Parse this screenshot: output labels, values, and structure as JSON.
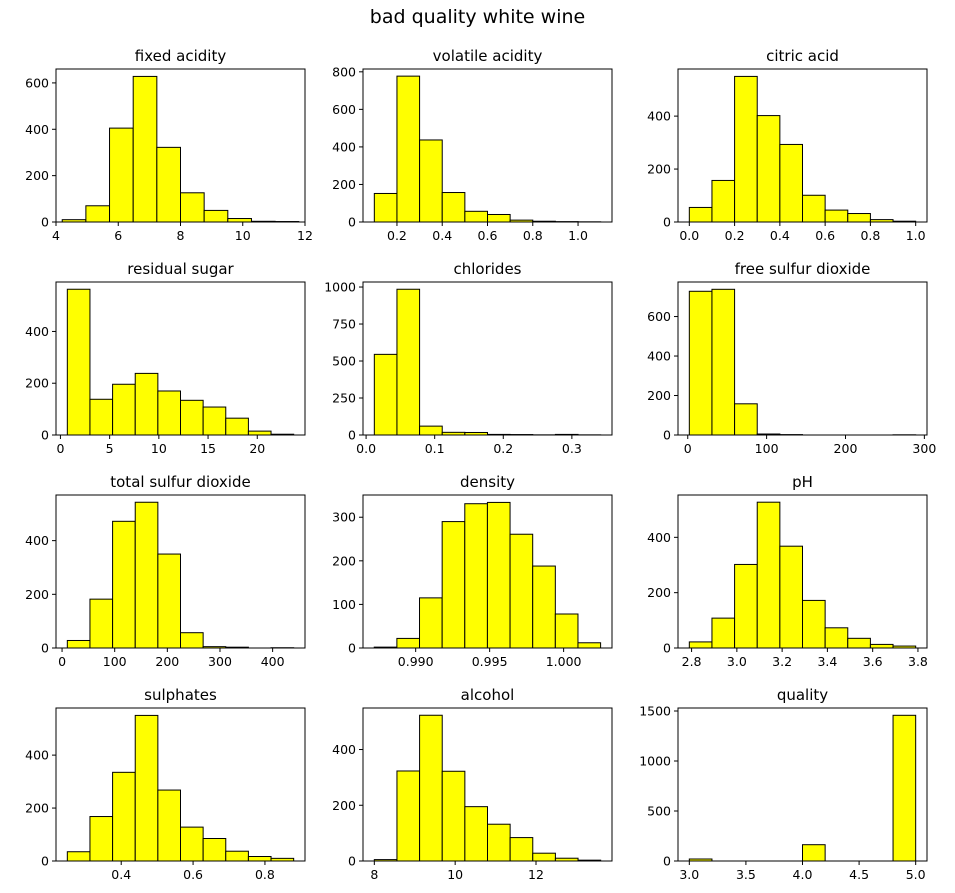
{
  "figure": {
    "title": "bad quality white wine",
    "bar_fill": "#ffff00",
    "bar_edge": "#000000"
  },
  "chart_data": [
    {
      "type": "bar",
      "title": "fixed acidity",
      "bin_edges": [
        4.2,
        4.96,
        5.72,
        6.48,
        7.24,
        8.0,
        8.76,
        9.52,
        10.28,
        11.04,
        11.8
      ],
      "values": [
        10,
        70,
        405,
        628,
        322,
        126,
        50,
        15,
        3,
        2
      ],
      "xlim": [
        4.0,
        12.0
      ],
      "ylim": [
        0,
        660
      ],
      "xticks": [
        4,
        6,
        8,
        10,
        12
      ],
      "yticks": [
        0,
        200,
        400,
        600
      ]
    },
    {
      "type": "bar",
      "title": "volatile acidity",
      "bin_edges": [
        0.1,
        0.2,
        0.3,
        0.4,
        0.5,
        0.6,
        0.7,
        0.8,
        0.9,
        1.0,
        1.1
      ],
      "values": [
        152,
        777,
        437,
        157,
        57,
        40,
        10,
        4,
        2,
        1
      ],
      "xlim": [
        0.05,
        1.15
      ],
      "ylim": [
        0,
        815
      ],
      "xticks": [
        0.2,
        0.4,
        0.6,
        0.8,
        1.0
      ],
      "xtick_labels": [
        "0.2",
        "0.4",
        "0.6",
        "0.8",
        "1.0"
      ],
      "yticks": [
        0,
        200,
        400,
        600,
        800
      ]
    },
    {
      "type": "bar",
      "title": "citric acid",
      "bin_edges": [
        0.0,
        0.1,
        0.2,
        0.3,
        0.4,
        0.5,
        0.6,
        0.7,
        0.8,
        0.9,
        1.0
      ],
      "values": [
        55,
        157,
        550,
        402,
        293,
        101,
        45,
        32,
        9,
        3
      ],
      "xlim": [
        -0.05,
        1.05
      ],
      "ylim": [
        0,
        578
      ],
      "xticks": [
        0.0,
        0.2,
        0.4,
        0.6,
        0.8,
        1.0
      ],
      "xtick_labels": [
        "0.0",
        "0.2",
        "0.4",
        "0.6",
        "0.8",
        "1.0"
      ],
      "yticks": [
        0,
        200,
        400
      ]
    },
    {
      "type": "bar",
      "title": "residual sugar",
      "bin_edges": [
        0.7,
        3.0,
        5.3,
        7.6,
        9.9,
        12.2,
        14.5,
        16.8,
        19.1,
        21.4,
        23.7
      ],
      "values": [
        563,
        138,
        196,
        238,
        170,
        134,
        108,
        65,
        15,
        3
      ],
      "xlim": [
        -0.45,
        24.85
      ],
      "ylim": [
        0,
        591
      ],
      "xticks": [
        0,
        5,
        10,
        15,
        20
      ],
      "yticks": [
        0,
        200,
        400
      ]
    },
    {
      "type": "bar",
      "title": "chlorides",
      "bin_edges": [
        0.012,
        0.045,
        0.078,
        0.111,
        0.144,
        0.177,
        0.21,
        0.243,
        0.276,
        0.309,
        0.342
      ],
      "values": [
        545,
        985,
        60,
        18,
        17,
        4,
        3,
        1,
        4,
        1
      ],
      "xlim": [
        -0.0045,
        0.3585
      ],
      "ylim": [
        0,
        1034
      ],
      "xticks": [
        0.0,
        0.1,
        0.2,
        0.3
      ],
      "xtick_labels": [
        "0.0",
        "0.1",
        "0.2",
        "0.3"
      ],
      "yticks": [
        0,
        250,
        500,
        750,
        1000
      ]
    },
    {
      "type": "bar",
      "title": "free sulfur dioxide",
      "bin_edges": [
        2,
        30.7,
        59.4,
        88.1,
        116.8,
        145.5,
        174.2,
        202.9,
        231.6,
        260.3,
        289
      ],
      "values": [
        728,
        738,
        158,
        5,
        2,
        0,
        0,
        0,
        0,
        1
      ],
      "xlim": [
        -12.35,
        303.35
      ],
      "ylim": [
        0,
        775
      ],
      "xticks": [
        0,
        100,
        200,
        300
      ],
      "yticks": [
        0,
        200,
        400,
        600
      ]
    },
    {
      "type": "bar",
      "title": "total sulfur dioxide",
      "bin_edges": [
        10,
        53,
        96,
        139,
        182,
        225,
        268,
        311,
        354,
        397,
        440
      ],
      "values": [
        28,
        182,
        472,
        543,
        350,
        57,
        5,
        3,
        0,
        1
      ],
      "xlim": [
        -11.5,
        461.5
      ],
      "ylim": [
        0,
        570
      ],
      "xticks": [
        0,
        100,
        200,
        300,
        400
      ],
      "yticks": [
        0,
        200,
        400
      ]
    },
    {
      "type": "bar",
      "title": "density",
      "bin_edges": [
        0.9872,
        0.98873,
        0.99026,
        0.99179,
        0.99332,
        0.99485,
        0.99638,
        0.99791,
        0.99944,
        1.00097,
        1.0025
      ],
      "values": [
        2,
        22,
        115,
        290,
        331,
        334,
        261,
        188,
        78,
        12
      ],
      "xlim": [
        0.98644,
        1.00327
      ],
      "ylim": [
        0,
        351
      ],
      "xticks": [
        0.99,
        0.995,
        1.0
      ],
      "xtick_labels": [
        "0.990",
        "0.995",
        "1.000"
      ],
      "yticks": [
        0,
        100,
        200,
        300
      ]
    },
    {
      "type": "bar",
      "title": "pH",
      "bin_edges": [
        2.79,
        2.89,
        2.99,
        3.09,
        3.19,
        3.29,
        3.39,
        3.49,
        3.59,
        3.69,
        3.79
      ],
      "values": [
        22,
        108,
        302,
        527,
        368,
        172,
        73,
        35,
        13,
        7
      ],
      "xlim": [
        2.74,
        3.84
      ],
      "ylim": [
        0,
        553
      ],
      "xticks": [
        2.8,
        3.0,
        3.2,
        3.4,
        3.6,
        3.8
      ],
      "xtick_labels": [
        "2.8",
        "3.0",
        "3.2",
        "3.4",
        "3.6",
        "3.8"
      ],
      "yticks": [
        0,
        200,
        400
      ]
    },
    {
      "type": "bar",
      "title": "sulphates",
      "bin_edges": [
        0.25,
        0.313,
        0.376,
        0.439,
        0.502,
        0.565,
        0.628,
        0.691,
        0.754,
        0.817,
        0.88
      ],
      "values": [
        35,
        168,
        335,
        550,
        268,
        128,
        85,
        37,
        17,
        10
      ],
      "xlim": [
        0.2185,
        0.9115
      ],
      "ylim": [
        0,
        578
      ],
      "xticks": [
        0.4,
        0.6,
        0.8
      ],
      "xtick_labels": [
        "0.4",
        "0.6",
        "0.8"
      ],
      "yticks": [
        0,
        200,
        400
      ]
    },
    {
      "type": "bar",
      "title": "alcohol",
      "bin_edges": [
        8.0,
        8.56,
        9.12,
        9.68,
        10.24,
        10.8,
        11.36,
        11.92,
        12.48,
        13.04,
        13.6
      ],
      "values": [
        5,
        323,
        523,
        322,
        195,
        132,
        84,
        28,
        10,
        3
      ],
      "xlim": [
        7.72,
        13.88
      ],
      "ylim": [
        0,
        549
      ],
      "xticks": [
        8,
        10,
        12
      ],
      "yticks": [
        0,
        200,
        400
      ]
    },
    {
      "type": "bar",
      "title": "quality",
      "bin_edges": [
        3.0,
        3.2,
        3.4,
        3.6,
        3.8,
        4.0,
        4.2,
        4.4,
        4.6,
        4.8,
        5.0
      ],
      "values": [
        20,
        0,
        0,
        0,
        0,
        163,
        0,
        0,
        0,
        1457
      ],
      "xlim": [
        2.9,
        5.1
      ],
      "ylim": [
        0,
        1530
      ],
      "xticks": [
        3.0,
        3.5,
        4.0,
        4.5,
        5.0
      ],
      "xtick_labels": [
        "3.0",
        "3.5",
        "4.0",
        "4.5",
        "5.0"
      ],
      "yticks": [
        0,
        500,
        1000,
        1500
      ]
    }
  ]
}
